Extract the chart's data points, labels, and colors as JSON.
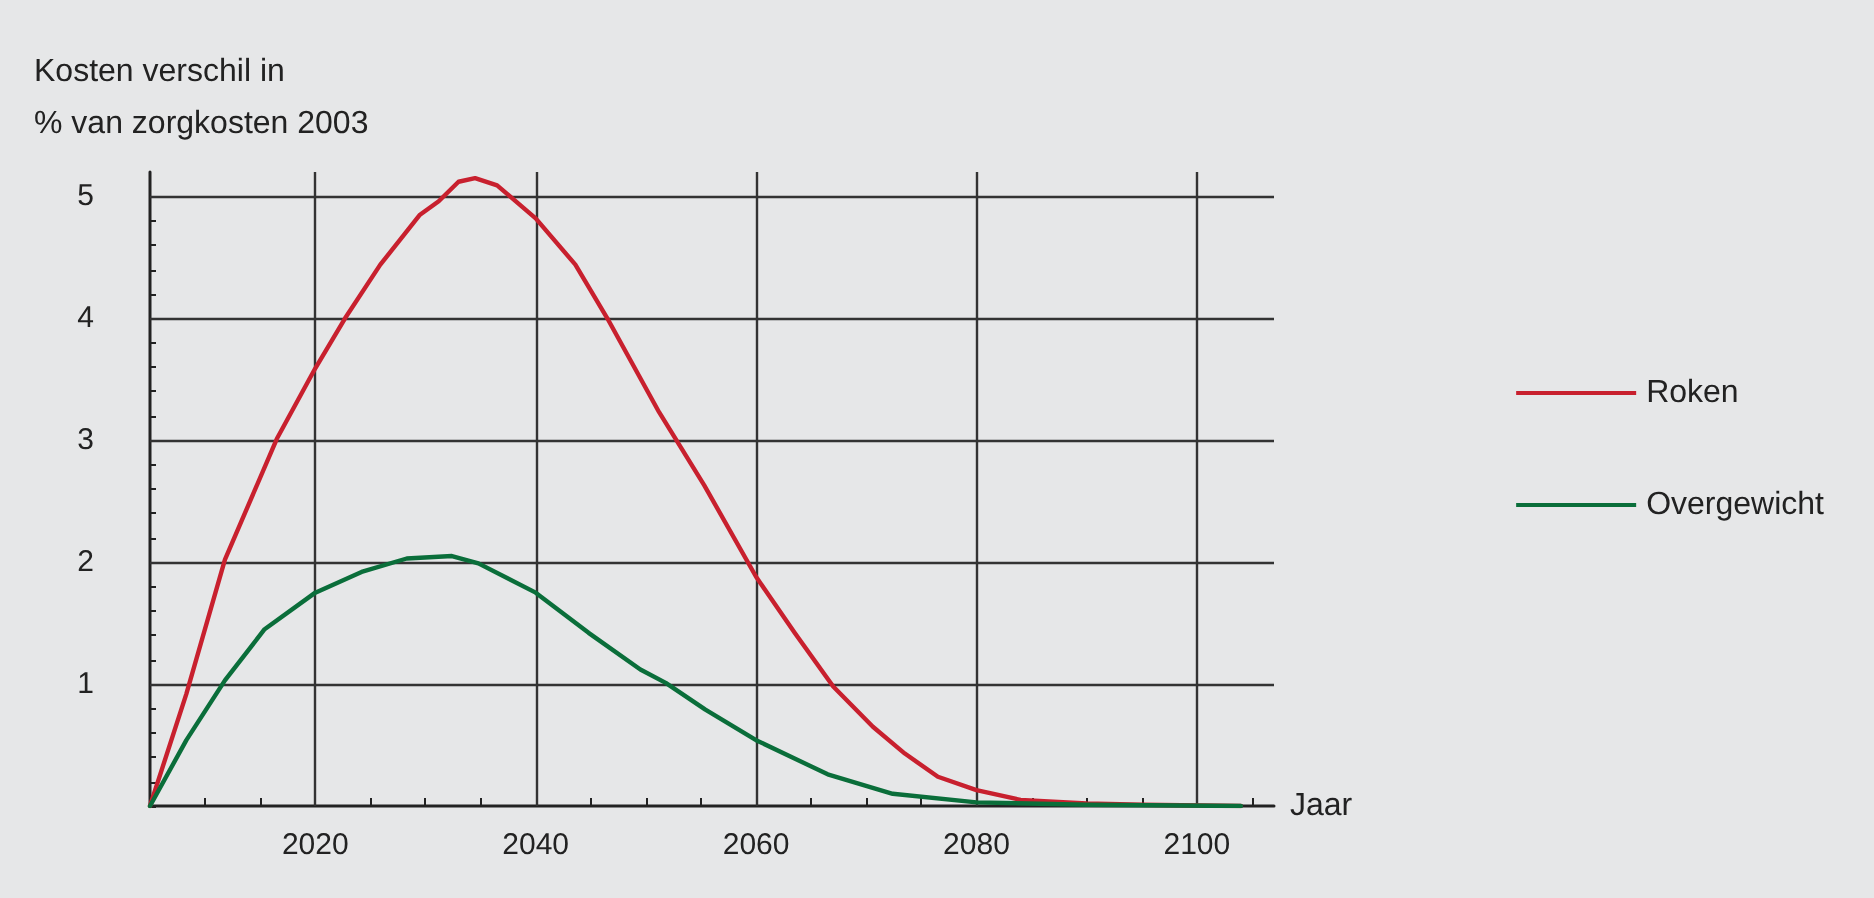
{
  "chart_data": {
    "type": "line",
    "ylabel": "Kosten verschil in\n% van zorgkosten 2003",
    "xlabel": "Jaar",
    "xlim": [
      2005,
      2107
    ],
    "ylim": [
      0,
      5.2
    ],
    "xticks": [
      {
        "value": 2010,
        "label": null
      },
      {
        "value": 2015,
        "label": null
      },
      2020,
      {
        "value": 2025,
        "label": null
      },
      {
        "value": 2030,
        "label": null
      },
      {
        "value": 2035,
        "label": null
      },
      2040,
      {
        "value": 2045,
        "label": null
      },
      {
        "value": 2050,
        "label": null
      },
      {
        "value": 2055,
        "label": null
      },
      2060,
      {
        "value": 2065,
        "label": null
      },
      {
        "value": 2070,
        "label": null
      },
      {
        "value": 2075,
        "label": null
      },
      2080,
      {
        "value": 2085,
        "label": null
      },
      {
        "value": 2090,
        "label": null
      },
      {
        "value": 2095,
        "label": null
      },
      2100,
      {
        "value": 2105,
        "label": null
      }
    ],
    "yticks": [
      {
        "value": 0,
        "label": null
      },
      {
        "value": 0.2,
        "label": null
      },
      {
        "value": 0.4,
        "label": null
      },
      {
        "value": 0.6,
        "label": null
      },
      {
        "value": 0.8,
        "label": null
      },
      1,
      {
        "value": 1.2,
        "label": null
      },
      {
        "value": 1.4,
        "label": null
      },
      {
        "value": 1.6,
        "label": null
      },
      {
        "value": 1.8,
        "label": null
      },
      2,
      {
        "value": 2.2,
        "label": null
      },
      {
        "value": 2.4,
        "label": null
      },
      {
        "value": 2.6,
        "label": null
      },
      {
        "value": 2.8,
        "label": null
      },
      3,
      {
        "value": 3.2,
        "label": null
      },
      {
        "value": 3.4,
        "label": null
      },
      {
        "value": 3.6,
        "label": null
      },
      {
        "value": 3.8,
        "label": null
      },
      4,
      {
        "value": 4.2,
        "label": null
      },
      {
        "value": 4.4,
        "label": null
      },
      {
        "value": 4.6,
        "label": null
      },
      {
        "value": 4.8,
        "label": null
      },
      5
    ],
    "grid": true,
    "legend": "right",
    "marker": "none",
    "series": [
      {
        "name": "Roken",
        "color": "#c8202e",
        "x": [
          2005,
          2008.3,
          2011.8,
          2016.5,
          2020,
          2022.7,
          2025.9,
          2029.5,
          2031.2,
          2033,
          2034.5,
          2036.5,
          2040,
          2043.6,
          2046.5,
          2051.2,
          2055.3,
          2060,
          2063.5,
          2067,
          2070.6,
          2073.5,
          2076.5,
          2080,
          2084,
          2090,
          2095,
          2104
        ],
        "values": [
          0,
          0.92,
          2.02,
          3.01,
          3.59,
          4.0,
          4.44,
          4.85,
          4.96,
          5.12,
          5.15,
          5.09,
          4.82,
          4.44,
          4.0,
          3.23,
          2.63,
          1.88,
          1.42,
          0.98,
          0.65,
          0.43,
          0.24,
          0.13,
          0.05,
          0.02,
          0.01,
          0
        ]
      },
      {
        "name": "Overgewicht",
        "color": "#0a6e3a",
        "x": [
          2005,
          2008.3,
          2011.8,
          2015.4,
          2020,
          2024.2,
          2028.3,
          2032.4,
          2034.8,
          2040,
          2044.8,
          2049.5,
          2051.8,
          2055.4,
          2060,
          2066.5,
          2072.4,
          2080,
          2090,
          2104
        ],
        "values": [
          0,
          0.54,
          1.03,
          1.45,
          1.75,
          1.92,
          2.03,
          2.05,
          1.99,
          1.75,
          1.42,
          1.12,
          1.01,
          0.79,
          0.54,
          0.26,
          0.1,
          0.03,
          0.01,
          0
        ]
      }
    ]
  }
}
